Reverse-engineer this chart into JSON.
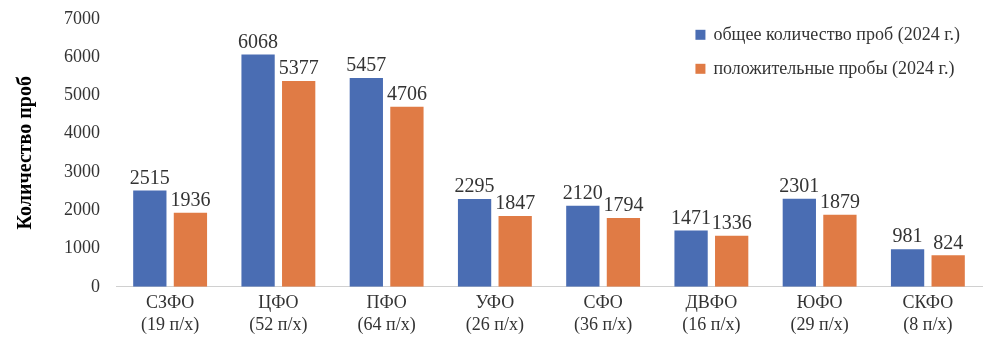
{
  "chart_data": {
    "type": "bar",
    "ylabel": "Количество проб",
    "categories": [
      "СЗФО\n(19 п/х)",
      "ЦФО\n(52 п/х)",
      "ПФО\n(64 п/х)",
      "УФО\n(26 п/х)",
      "СФО\n(36 п/х)",
      "ДВФО\n(16 п/х)",
      "ЮФО\n(29 п/х)",
      "СКФО\n(8 п/х)"
    ],
    "series": [
      {
        "name": "общее количество проб (2024 г.)",
        "color": "#4a6db3",
        "values": [
          2515,
          6068,
          5457,
          2295,
          2120,
          1471,
          2301,
          981
        ]
      },
      {
        "name": "положительные пробы (2024 г.)",
        "color": "#e07b45",
        "values": [
          1936,
          5377,
          4706,
          1847,
          1794,
          1336,
          1879,
          824
        ]
      }
    ],
    "ylim": [
      0,
      7000
    ],
    "yticks": [
      0,
      1000,
      2000,
      3000,
      4000,
      5000,
      6000,
      7000
    ],
    "grid": false,
    "legend": "top right",
    "data_labels": true
  }
}
